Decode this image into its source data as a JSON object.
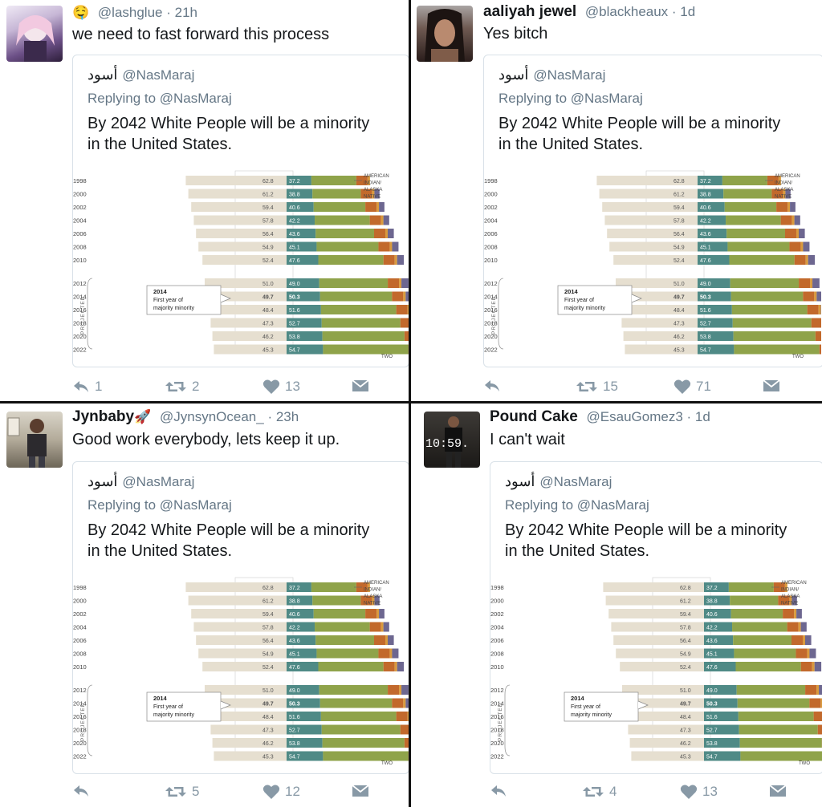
{
  "quoted": {
    "name": "أسود",
    "handle": "@NasMaraj",
    "replying": "Replying to @NasMaraj",
    "text_line1": "By 2042 White People will be a minority",
    "text_line2": "in the United States."
  },
  "chart_data": {
    "type": "bar",
    "years": [
      "1998",
      "2000",
      "2002",
      "2004",
      "2006",
      "2008",
      "2010",
      "2012",
      "2014",
      "2016",
      "2018",
      "2020",
      "2022"
    ],
    "white_pct": [
      62.8,
      61.2,
      59.4,
      57.8,
      56.4,
      54.9,
      52.4,
      51.0,
      49.7,
      48.4,
      47.3,
      46.2,
      45.3
    ],
    "minority_pct": [
      37.2,
      38.8,
      40.6,
      42.2,
      43.6,
      45.1,
      47.6,
      49.0,
      50.3,
      51.6,
      52.7,
      53.8,
      54.7
    ],
    "projected_label": "PROJECTED",
    "callout_year": "2014",
    "callout_line1": "First year of",
    "callout_line2": "majority minority",
    "legend_l1": "AMERICAN",
    "legend_l2": "INDIAN/",
    "legend_l3": "ALASKA",
    "legend_l4": "NATIVE",
    "cut_label": "TWO",
    "colors": {
      "white": "#e6dfd0",
      "minority": "#4f8a86",
      "hispanic": "#8fa34a",
      "asian": "#c2692c",
      "aian": "#d99a3d",
      "two": "#6d6790"
    }
  },
  "tweets": [
    {
      "emoji": "🤤",
      "name": "",
      "handle": "@lashglue",
      "time": "· 21h",
      "text": "we need to fast forward this process",
      "reply_count": "1",
      "retweet_count": "2",
      "like_count": "13"
    },
    {
      "emoji": "",
      "name": "aaliyah jewel",
      "handle": "@blackheaux",
      "time": "· 1d",
      "text": "Yes bitch",
      "reply_count": "",
      "retweet_count": "15",
      "like_count": "71"
    },
    {
      "emoji": "🚀",
      "name": "Jynbaby",
      "handle": "@JynsynOcean_",
      "time": "· 23h",
      "text": "Good work everybody, lets keep it up.",
      "reply_count": "",
      "retweet_count": "5",
      "like_count": "12"
    },
    {
      "emoji": "",
      "name": "Pound Cake",
      "handle": "@EsauGomez3",
      "time": "· 1d",
      "text": "I can't wait",
      "reply_count": "",
      "retweet_count": "4",
      "like_count": "13",
      "avatar_overlay": "10:59."
    }
  ]
}
